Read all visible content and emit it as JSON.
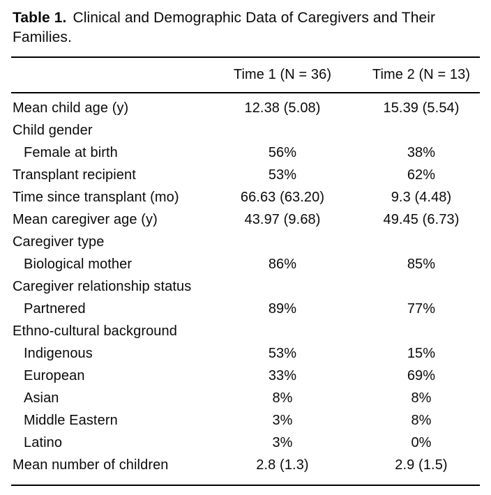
{
  "title": {
    "label": "Table 1.",
    "text": "Clinical and Demographic Data of Caregivers and Their Families."
  },
  "table": {
    "columns": [
      "",
      "Time 1 (N = 36)",
      "Time 2 (N = 13)"
    ],
    "rows": [
      {
        "label": "Mean child age (y)",
        "indent": false,
        "time1": "12.38 (5.08)",
        "time2": "15.39 (5.54)"
      },
      {
        "label": "Child gender",
        "indent": false,
        "time1": "",
        "time2": ""
      },
      {
        "label": "Female at birth",
        "indent": true,
        "time1": "56%",
        "time2": "38%"
      },
      {
        "label": "Transplant recipient",
        "indent": false,
        "time1": "53%",
        "time2": "62%"
      },
      {
        "label": "Time since transplant (mo)",
        "indent": false,
        "time1": "66.63 (63.20)",
        "time2": "9.3 (4.48)"
      },
      {
        "label": "Mean caregiver age (y)",
        "indent": false,
        "time1": "43.97 (9.68)",
        "time2": "49.45 (6.73)"
      },
      {
        "label": "Caregiver type",
        "indent": false,
        "time1": "",
        "time2": ""
      },
      {
        "label": "Biological mother",
        "indent": true,
        "time1": "86%",
        "time2": "85%"
      },
      {
        "label": "Caregiver relationship status",
        "indent": false,
        "time1": "",
        "time2": ""
      },
      {
        "label": "Partnered",
        "indent": true,
        "time1": "89%",
        "time2": "77%"
      },
      {
        "label": "Ethno-cultural background",
        "indent": false,
        "time1": "",
        "time2": ""
      },
      {
        "label": "Indigenous",
        "indent": true,
        "time1": "53%",
        "time2": "15%"
      },
      {
        "label": "European",
        "indent": true,
        "time1": "33%",
        "time2": "69%"
      },
      {
        "label": "Asian",
        "indent": true,
        "time1": "8%",
        "time2": "8%"
      },
      {
        "label": "Middle Eastern",
        "indent": true,
        "time1": "3%",
        "time2": "8%"
      },
      {
        "label": "Latino",
        "indent": true,
        "time1": "3%",
        "time2": "0%"
      },
      {
        "label": "Mean number of children",
        "indent": false,
        "time1": "2.8 (1.3)",
        "time2": "2.9 (1.5)"
      }
    ],
    "text_color": "#0a0a0a",
    "background_color": "#ffffff"
  }
}
